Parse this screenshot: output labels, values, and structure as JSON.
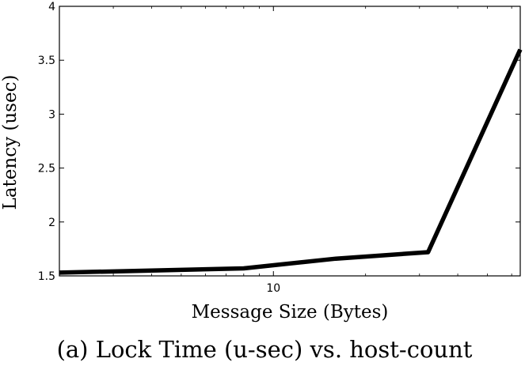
{
  "chart_data": {
    "type": "line",
    "xlabel": "Message Size (Bytes)",
    "ylabel": "Latency (usec)",
    "caption": "(a) Lock Time (u-sec) vs. host-count",
    "x_scale": "log",
    "xlim": [
      2,
      64
    ],
    "ylim": [
      1.5,
      4
    ],
    "x_ticks": [
      10
    ],
    "x_tick_labels": [
      "10"
    ],
    "y_ticks": [
      1.5,
      2,
      2.5,
      3,
      3.5,
      4
    ],
    "y_tick_labels": [
      "1.5",
      "2",
      "2.5",
      "3",
      "3.5",
      "4"
    ],
    "grid": false,
    "series": [
      {
        "x": [
          2,
          8,
          16,
          32,
          64
        ],
        "y": [
          1.53,
          1.57,
          1.66,
          1.72,
          3.6
        ],
        "color": "#000000"
      }
    ]
  }
}
